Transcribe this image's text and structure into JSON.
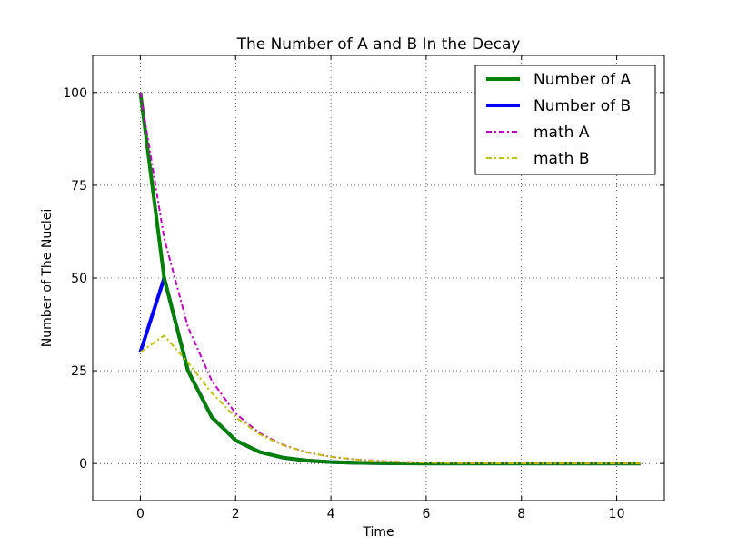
{
  "chart_data": {
    "type": "line",
    "title": "The Number of A and B In the Decay",
    "xlabel": "Time",
    "ylabel": "Number of The Nuclei",
    "xlim": [
      -1,
      11
    ],
    "ylim": [
      -10,
      110
    ],
    "xticks": [
      0,
      2,
      4,
      6,
      8,
      10
    ],
    "yticks": [
      0,
      25,
      50,
      75,
      100
    ],
    "grid": true,
    "legend_position": "top-right",
    "series": [
      {
        "name": "Number of A",
        "style": "solid",
        "color": "#008000",
        "x": [
          0,
          0.5,
          1,
          1.5,
          2,
          2.5,
          3,
          3.5,
          4,
          4.5,
          5,
          5.5,
          6,
          6.5,
          7,
          7.5,
          8,
          8.5,
          9,
          9.5,
          10,
          10.5
        ],
        "values": [
          100,
          50,
          25,
          12.5,
          6.25,
          3.13,
          1.56,
          0.78,
          0.39,
          0.2,
          0.1,
          0.05,
          0.02,
          0.01,
          0.01,
          0,
          0,
          0,
          0,
          0,
          0,
          0
        ]
      },
      {
        "name": "Number of B",
        "style": "solid",
        "color": "#0000ff",
        "x": [
          0,
          0.5,
          1,
          1.5,
          2,
          2.5,
          3,
          3.5,
          4,
          4.5,
          5,
          5.5,
          6,
          6.5,
          7,
          7.5,
          8,
          8.5,
          9,
          9.5,
          10,
          10.5
        ],
        "values": [
          30,
          50,
          25,
          12.5,
          6.25,
          3.13,
          1.56,
          0.78,
          0.39,
          0.2,
          0.1,
          0.05,
          0.02,
          0.01,
          0.01,
          0,
          0,
          0,
          0,
          0,
          0,
          0
        ]
      },
      {
        "name": "math A",
        "style": "dashdot",
        "color": "#bf00bf",
        "x": [
          0,
          0.5,
          1,
          1.5,
          2,
          2.5,
          3,
          3.5,
          4,
          4.5,
          5,
          5.5,
          6,
          6.5,
          7,
          7.5,
          8,
          8.5,
          9,
          9.5,
          10,
          10.5
        ],
        "values": [
          100,
          60.7,
          36.8,
          22.3,
          13.5,
          8.2,
          5.0,
          3.0,
          1.8,
          1.1,
          0.7,
          0.4,
          0.25,
          0.15,
          0.09,
          0.06,
          0.03,
          0.02,
          0.01,
          0.01,
          0,
          0
        ]
      },
      {
        "name": "math B",
        "style": "dashdot",
        "color": "#bfbf00",
        "x": [
          0,
          0.5,
          1,
          1.5,
          2,
          2.5,
          3,
          3.5,
          4,
          4.5,
          5,
          5.5,
          6,
          6.5,
          7,
          7.5,
          8,
          8.5,
          9,
          9.5,
          10,
          10.5
        ],
        "values": [
          30,
          34.5,
          27.2,
          19.0,
          12.5,
          7.9,
          4.9,
          3.0,
          1.8,
          1.1,
          0.65,
          0.39,
          0.23,
          0.13,
          0.08,
          0.05,
          0.03,
          0.02,
          0.01,
          0.01,
          0,
          0
        ]
      }
    ]
  }
}
